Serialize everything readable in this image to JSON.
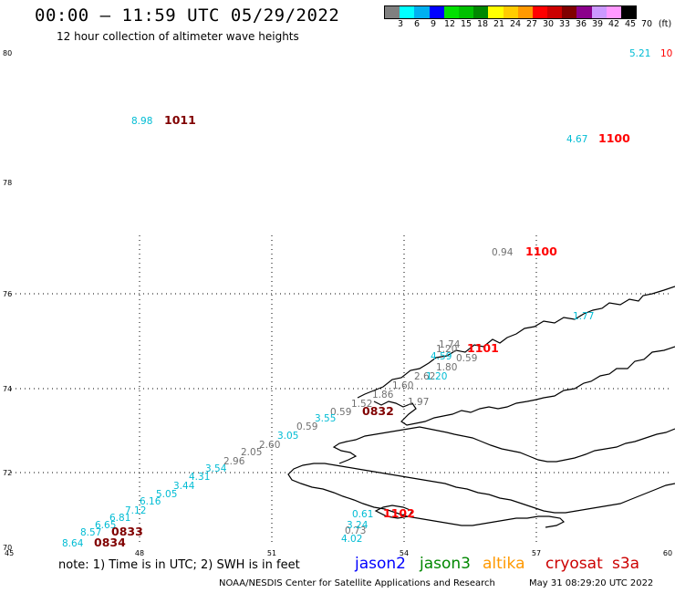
{
  "header": {
    "title": "00:00 – 11:59 UTC 05/29/2022",
    "subtitle": "12 hour collection of altimeter wave heights"
  },
  "colorbar": {
    "colors": [
      "#808080",
      "#00ffff",
      "#00b0f0",
      "#0000ff",
      "#00e000",
      "#00c000",
      "#008800",
      "#ffff00",
      "#ffcc00",
      "#ff9900",
      "#ff0000",
      "#cc0000",
      "#800000",
      "#8b008b",
      "#cc99ff",
      "#ff99ff",
      "#000000"
    ],
    "labels": [
      "3",
      "6",
      "9",
      "12",
      "15",
      "18",
      "21",
      "24",
      "27",
      "30",
      "33",
      "36",
      "39",
      "42",
      "45",
      "70",
      "(ft)"
    ]
  },
  "map": {
    "lat_labels": [
      "80",
      "78",
      "76",
      "74",
      "72",
      "70"
    ],
    "lon_labels": [
      "45",
      "48",
      "51",
      "54",
      "57",
      "60"
    ],
    "points": [
      {
        "text": "5.21",
        "color": "#00bcd4"
      },
      {
        "text": "10",
        "color": "#ff0000"
      },
      {
        "text": "8.98",
        "color": "#00bcd4"
      },
      {
        "text": "1011",
        "color": "#800000"
      },
      {
        "text": "4.67",
        "color": "#00bcd4"
      },
      {
        "text": "1100",
        "color": "#ff0000"
      },
      {
        "text": "0.94",
        "color": "#707070"
      },
      {
        "text": "1100",
        "color": "#ff0000"
      },
      {
        "text": "1.77",
        "color": "#00bcd4"
      },
      {
        "text": "1.74",
        "color": "#707070"
      },
      {
        "text": "1.20",
        "color": "#707070"
      },
      {
        "text": "1101",
        "color": "#ff0000"
      },
      {
        "text": "4.59",
        "color": "#00bcd4"
      },
      {
        "text": "0.59",
        "color": "#707070"
      },
      {
        "text": "1.80",
        "color": "#707070"
      },
      {
        "text": "2.62",
        "color": "#707070"
      },
      {
        "text": "1.20",
        "color": "#00bcd4"
      },
      {
        "text": "1.60",
        "color": "#707070"
      },
      {
        "text": "1.86",
        "color": "#707070"
      },
      {
        "text": "1.52",
        "color": "#707070"
      },
      {
        "text": "1.97",
        "color": "#707070"
      },
      {
        "text": "0.59",
        "color": "#707070"
      },
      {
        "text": "0832",
        "color": "#800000"
      },
      {
        "text": "3.55",
        "color": "#00bcd4"
      },
      {
        "text": "0.59",
        "color": "#707070"
      },
      {
        "text": "3.05",
        "color": "#00bcd4"
      },
      {
        "text": "2.60",
        "color": "#707070"
      },
      {
        "text": "2.05",
        "color": "#707070"
      },
      {
        "text": "2.96",
        "color": "#707070"
      },
      {
        "text": "3.54",
        "color": "#00bcd4"
      },
      {
        "text": "4.31",
        "color": "#00bcd4"
      },
      {
        "text": "3.44",
        "color": "#00bcd4"
      },
      {
        "text": "5.05",
        "color": "#00bcd4"
      },
      {
        "text": "6.16",
        "color": "#00bcd4"
      },
      {
        "text": "7.12",
        "color": "#00bcd4"
      },
      {
        "text": "6.81",
        "color": "#00bcd4"
      },
      {
        "text": "6.65",
        "color": "#00bcd4"
      },
      {
        "text": "0833",
        "color": "#800000"
      },
      {
        "text": "8.57",
        "color": "#00bcd4"
      },
      {
        "text": "8.64",
        "color": "#00bcd4"
      },
      {
        "text": "0834",
        "color": "#800000"
      },
      {
        "text": "0.61",
        "color": "#00bcd4"
      },
      {
        "text": "1102",
        "color": "#ff0000"
      },
      {
        "text": "0.73",
        "color": "#707070"
      },
      {
        "text": "3.24",
        "color": "#00bcd4"
      },
      {
        "text": "4.02",
        "color": "#00bcd4"
      }
    ]
  },
  "footer": {
    "note": "note: 1) Time is in UTC; 2) SWH is in feet",
    "satellites": [
      {
        "name": "jason2",
        "color": "#0000ff"
      },
      {
        "name": "jason3",
        "color": "#008800"
      },
      {
        "name": "altika",
        "color": "#ff9900"
      },
      {
        "name": "cryosat",
        "color": "#cc0000"
      },
      {
        "name": "s3a",
        "color": "#cc0000"
      }
    ],
    "credit": "NOAA/NESDIS Center for Satellite Applications and Research",
    "timestamp": "May 31 08:29:20 UTC 2022"
  }
}
